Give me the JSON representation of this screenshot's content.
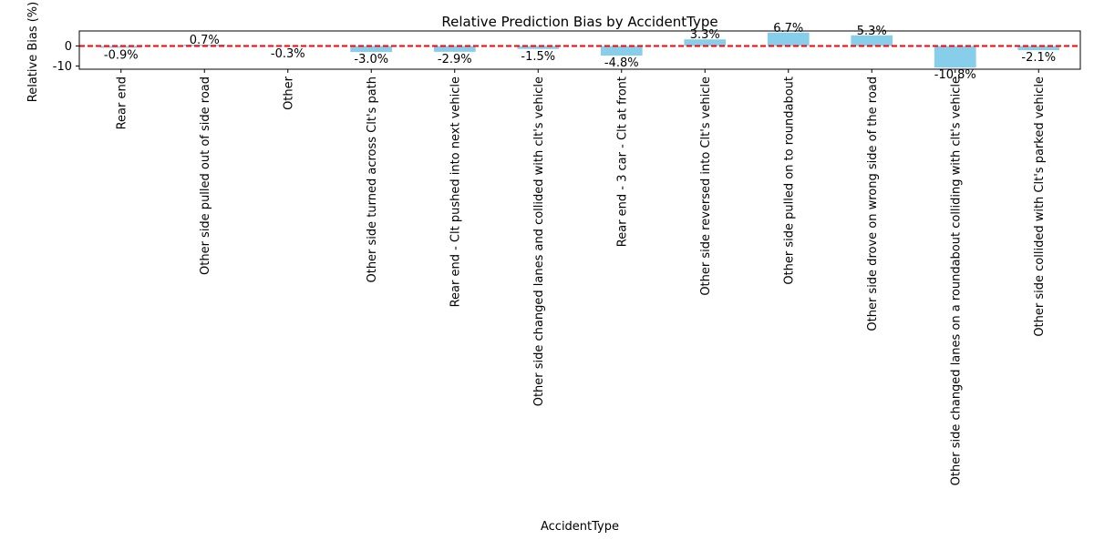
{
  "chart_data": {
    "type": "bar",
    "title": "Relative Prediction Bias by AccidentType",
    "xlabel": "AccidentType",
    "ylabel": "Relative Bias (%)",
    "categories": [
      "Rear end",
      "Other side pulled out of side road",
      "Other",
      "Other side turned across Clt's path",
      "Rear end - Clt pushed into next vehicle",
      "Other side changed lanes and collided with clt's vehicle",
      "Rear end - 3 car - Clt at front",
      "Other side reversed into Clt's vehicle",
      "Other side pulled on to roundabout",
      "Other side drove on wrong side of the road",
      "Other side changed lanes on a roundabout colliding with clt's vehicle",
      "Other side collided with Clt's parked vehicle"
    ],
    "values": [
      -0.9,
      0.7,
      -0.3,
      -3.0,
      -2.9,
      -1.5,
      -4.8,
      3.3,
      6.7,
      5.3,
      -10.8,
      -2.1
    ],
    "value_labels": [
      "-0.9%",
      "0.7%",
      "-0.3%",
      "-3.0%",
      "-2.9%",
      "-1.5%",
      "-4.8%",
      "3.3%",
      "6.7%",
      "5.3%",
      "-10.8%",
      "-2.1%"
    ],
    "ylim": [
      -11.6,
      7.5
    ],
    "yticks": [
      -10,
      0
    ],
    "ytick_labels": [
      "-10",
      "0"
    ],
    "reference_line": {
      "y": 0,
      "style": "dashed",
      "color": "#ff0000"
    },
    "bar_color": "#87ceeb",
    "grid": false,
    "legend": "none"
  }
}
